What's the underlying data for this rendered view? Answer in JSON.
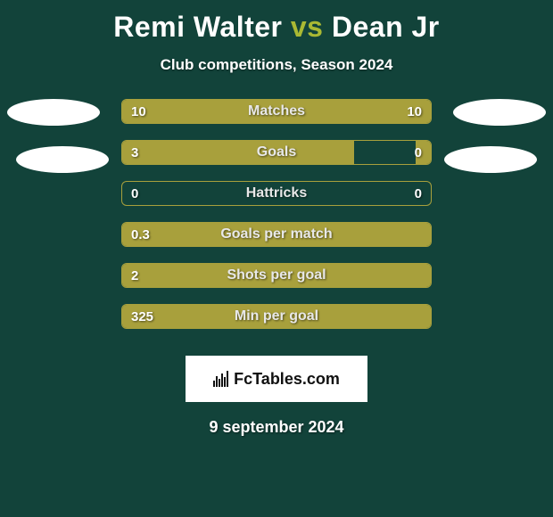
{
  "colors": {
    "background": "#12433a",
    "bar_fill": "#a8a03c",
    "bar_border": "#a8a03c",
    "vs_color": "#aab933",
    "avatar": "#ffffff",
    "logo_bg": "#ffffff",
    "text": "#ffffff"
  },
  "title": {
    "player1": "Remi Walter",
    "vs": "vs",
    "player2": "Dean Jr"
  },
  "subtitle": "Club competitions, Season 2024",
  "stats": [
    {
      "label": "Matches",
      "left_val": "10",
      "right_val": "10",
      "left_pct": 50,
      "right_pct": 50
    },
    {
      "label": "Goals",
      "left_val": "3",
      "right_val": "0",
      "left_pct": 75,
      "right_pct": 5
    },
    {
      "label": "Hattricks",
      "left_val": "0",
      "right_val": "0",
      "left_pct": 0,
      "right_pct": 0
    },
    {
      "label": "Goals per match",
      "left_val": "0.3",
      "right_val": "",
      "left_pct": 100,
      "right_pct": 0
    },
    {
      "label": "Shots per goal",
      "left_val": "2",
      "right_val": "",
      "left_pct": 100,
      "right_pct": 0
    },
    {
      "label": "Min per goal",
      "left_val": "325",
      "right_val": "",
      "left_pct": 100,
      "right_pct": 0
    }
  ],
  "logo_text": "FcTables.com",
  "date": "9 september 2024"
}
